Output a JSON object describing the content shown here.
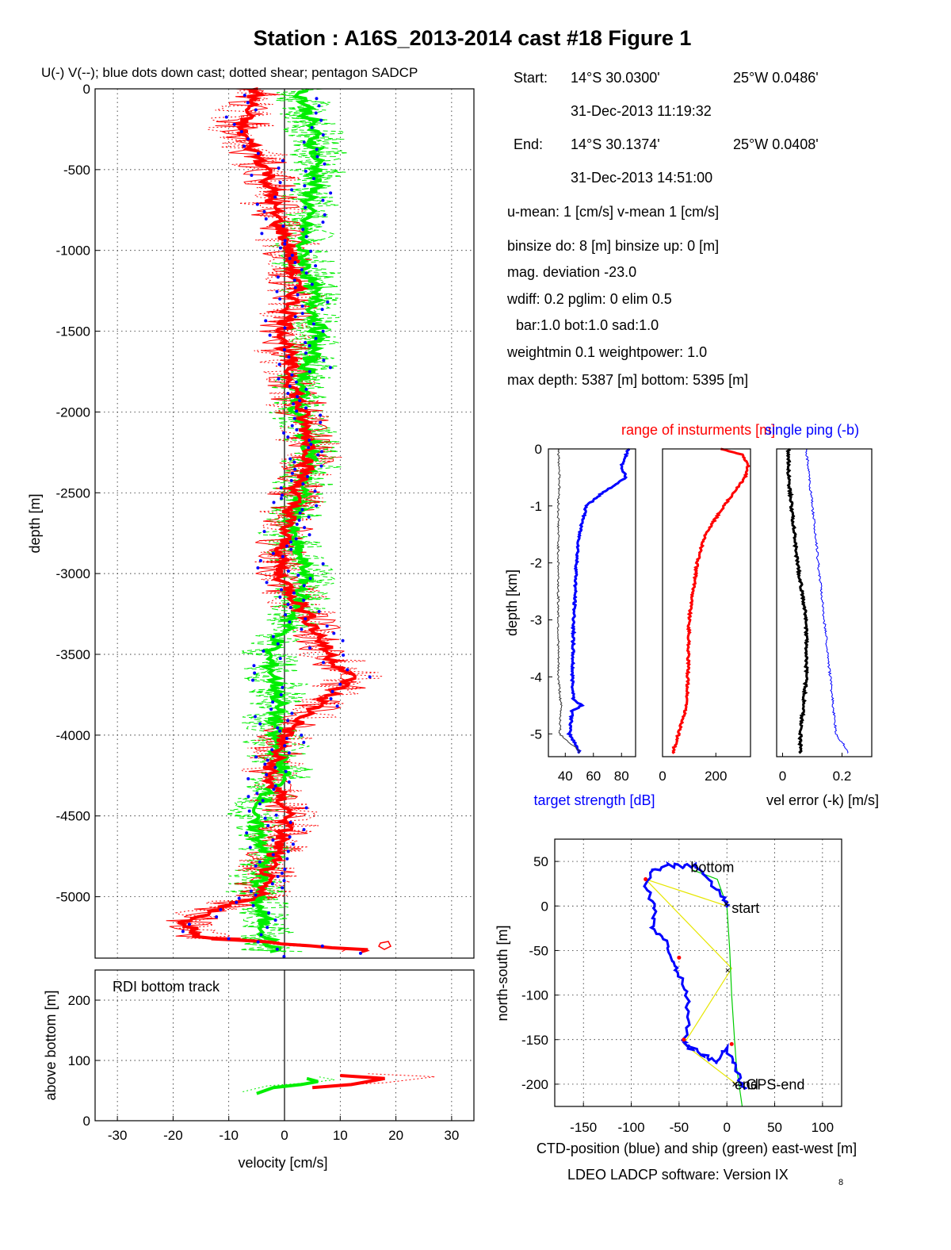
{
  "title": "Station : A16S_2013-2014 cast #18  Figure 1",
  "main_legend": "U(-) V(--); blue dots down cast; dotted shear; pentagon SADCP",
  "colors": {
    "u": "#ff0000",
    "v": "#00ee00",
    "downcast": "#0000ff",
    "ctd": "#0000ff",
    "ship": "#00cc00",
    "std": "#000000",
    "link": "#ffff00"
  },
  "info": {
    "start_label": "Start:",
    "start_lat": "14°S 30.0300'",
    "start_lon": "25°W  0.0486'",
    "start_time": "31-Dec-2013 11:19:32",
    "end_label": "End:",
    "end_lat": "14°S 30.1374'",
    "end_lon": "25°W  0.0408'",
    "end_time": "31-Dec-2013 14:51:00",
    "means": "u-mean:   1 [cm/s]    v-mean   1 [cm/s]",
    "binsize": "binsize do: 8 [m]  binsize up:  0 [m]",
    "magdev": "mag. deviation -23.0",
    "wdiff": "wdiff: 0.2  pglim: 0  elim 0.5",
    "weights": "bar:1.0 bot:1.0 sad:1.0",
    "weightmin": "weightmin 0.1  weightpower: 1.0",
    "depths": "max depth: 5387 [m]   bottom: 5395 [m]"
  },
  "chart_data": [
    {
      "id": "velocity_profile",
      "type": "line",
      "title": "",
      "xlabel": "",
      "ylabel": "depth [m]",
      "xlim": [
        -34,
        34
      ],
      "ylim": [
        -5380,
        0
      ],
      "yticks": [
        0,
        -500,
        -1000,
        -1500,
        -2000,
        -2500,
        -3000,
        -3500,
        -4000,
        -4500,
        -5000
      ],
      "ytick_labels": [
        "0",
        "-500",
        "-1000",
        "-1500",
        "-2000",
        "-2500",
        "-3000",
        "-3500",
        "-4000",
        "-4500",
        "-5000"
      ],
      "xticks": [
        -30,
        -20,
        -10,
        0,
        10,
        20,
        30
      ],
      "grid": true,
      "series": [
        {
          "name": "U",
          "style": "solid red",
          "depth": [
            0,
            -250,
            -500,
            -750,
            -1000,
            -1250,
            -1500,
            -1750,
            -2000,
            -2250,
            -2500,
            -2750,
            -3000,
            -3250,
            -3500,
            -3650,
            -3750,
            -4000,
            -4250,
            -4500,
            -4750,
            -5000,
            -5150,
            -5250,
            -5330
          ],
          "values": [
            -5,
            -8,
            -3,
            -2,
            1,
            2,
            0,
            1,
            3,
            5,
            2,
            0,
            -1,
            4,
            8,
            12,
            8,
            0,
            -3,
            1,
            -2,
            -5,
            -18,
            -15,
            15
          ]
        },
        {
          "name": "V",
          "style": "dashed green",
          "depth": [
            0,
            -250,
            -500,
            -750,
            -1000,
            -1250,
            -1500,
            -1750,
            -2000,
            -2250,
            -2500,
            -2750,
            -3000,
            -3250,
            -3500,
            -3750,
            -4000,
            -4250,
            -4500,
            -4750,
            -5000,
            -5250,
            -5330
          ],
          "values": [
            3,
            5,
            6,
            4,
            3,
            5,
            6,
            4,
            2,
            5,
            3,
            1,
            4,
            2,
            -3,
            -1,
            -2,
            0,
            -6,
            -3,
            -5,
            -3,
            -2
          ]
        }
      ]
    },
    {
      "id": "bottom_track",
      "type": "line",
      "title": "RDI bottom track",
      "xlabel": "velocity [cm/s]",
      "ylabel": "above bottom [m]",
      "xlim": [
        -34,
        34
      ],
      "ylim": [
        0,
        250
      ],
      "yticks": [
        0,
        100,
        200
      ],
      "xticks": [
        -30,
        -20,
        -10,
        0,
        10,
        20,
        30
      ],
      "xtick_labels": [
        "-30",
        "-20",
        "-10",
        "0",
        "10",
        "20",
        "30"
      ],
      "grid": true,
      "series": [
        {
          "name": "U",
          "height": [
            55,
            60,
            65,
            70,
            75
          ],
          "values": [
            5,
            12,
            15,
            18,
            10
          ]
        },
        {
          "name": "V",
          "height": [
            45,
            55,
            60,
            65,
            70
          ],
          "values": [
            -5,
            -2,
            3,
            6,
            4
          ]
        }
      ]
    },
    {
      "id": "target_strength",
      "type": "line",
      "xlabel": "target strength [dB]",
      "ylabel": "depth [km]",
      "xlim": [
        28,
        90
      ],
      "ylim": [
        -5.4,
        0
      ],
      "xticks": [
        40,
        60,
        80
      ],
      "yticks": [
        0,
        -1,
        -2,
        -3,
        -4,
        -5
      ],
      "grid": false,
      "series": [
        {
          "name": "target strength",
          "depth": [
            0,
            -0.3,
            -0.5,
            -0.8,
            -1.0,
            -1.5,
            -2.0,
            -3.0,
            -4.0,
            -4.4,
            -4.5,
            -4.6,
            -5.0,
            -5.3
          ],
          "values": [
            85,
            80,
            83,
            65,
            55,
            50,
            48,
            46,
            45,
            46,
            52,
            45,
            43,
            50
          ]
        },
        {
          "name": "range",
          "depth": [
            0,
            -0.5,
            -1.0,
            -2.0,
            -3.0,
            -4.0,
            -4.5,
            -5.0,
            -5.3
          ],
          "values": [
            35,
            36,
            35,
            35,
            35,
            35,
            37,
            36,
            50
          ]
        }
      ]
    },
    {
      "id": "range_of_instruments",
      "type": "line",
      "title": "range of insturments [m]",
      "xlabel": "",
      "xlim": [
        0,
        330
      ],
      "ylim": [
        -5.4,
        0
      ],
      "xticks": [
        0,
        200
      ],
      "grid": false,
      "series": [
        {
          "name": "range",
          "depth": [
            0,
            -0.1,
            -0.3,
            -0.5,
            -1.0,
            -1.5,
            -2.0,
            -3.0,
            -4.0,
            -4.5,
            -5.0,
            -5.3
          ],
          "values": [
            220,
            300,
            320,
            310,
            230,
            160,
            130,
            100,
            95,
            90,
            60,
            40
          ]
        }
      ]
    },
    {
      "id": "velocity_error",
      "type": "line",
      "title": "single ping (-b)",
      "xlabel": "vel error (-k) [m/s]",
      "xlim": [
        -0.02,
        0.3
      ],
      "ylim": [
        -5.4,
        0
      ],
      "xticks": [
        0,
        0.2
      ],
      "grid": false,
      "series": [
        {
          "name": "vel error",
          "depth": [
            0,
            -0.5,
            -1.0,
            -2.0,
            -3.0,
            -4.0,
            -4.5,
            -5.0,
            -5.3
          ],
          "values": [
            0.02,
            0.02,
            0.03,
            0.05,
            0.08,
            0.08,
            0.07,
            0.06,
            0.06
          ]
        },
        {
          "name": "single ping",
          "depth": [
            0,
            -0.5,
            -1.0,
            -2.0,
            -3.0,
            -4.0,
            -4.5,
            -5.0,
            -5.3
          ],
          "values": [
            0.08,
            0.09,
            0.1,
            0.12,
            0.14,
            0.16,
            0.17,
            0.18,
            0.22
          ]
        }
      ]
    },
    {
      "id": "position",
      "type": "line",
      "xlabel": "CTD-position (blue) and ship (green) east-west [m]",
      "ylabel": "north-south [m]",
      "xlim": [
        -180,
        120
      ],
      "ylim": [
        -225,
        75
      ],
      "xticks": [
        -150,
        -100,
        -50,
        0,
        50,
        100
      ],
      "yticks": [
        50,
        0,
        -50,
        -100,
        -150,
        -200
      ],
      "grid": true,
      "annotations": [
        "bottom",
        "start",
        "end",
        "GPS-end"
      ],
      "series": [
        {
          "name": "CTD-position",
          "x": [
            0,
            -5,
            -20,
            -30,
            -45,
            -60,
            -80,
            -85,
            -75,
            -78,
            -65,
            -55,
            -50,
            -42,
            -40,
            -45,
            -35,
            -20,
            -10,
            0,
            10,
            15,
            18
          ],
          "y": [
            0,
            10,
            30,
            45,
            45,
            45,
            40,
            20,
            0,
            -25,
            -40,
            -60,
            -75,
            -100,
            -130,
            -155,
            -160,
            -170,
            -175,
            -160,
            -180,
            -200,
            -205
          ]
        },
        {
          "name": "ship",
          "x": [
            -35,
            -10,
            0,
            3,
            5,
            8,
            10,
            14,
            16
          ],
          "y": [
            40,
            30,
            0,
            -50,
            -100,
            -150,
            -180,
            -210,
            -225
          ]
        }
      ]
    }
  ],
  "footer": {
    "software": "LDEO LADCP software: Version IX",
    "version_sub": "8"
  }
}
